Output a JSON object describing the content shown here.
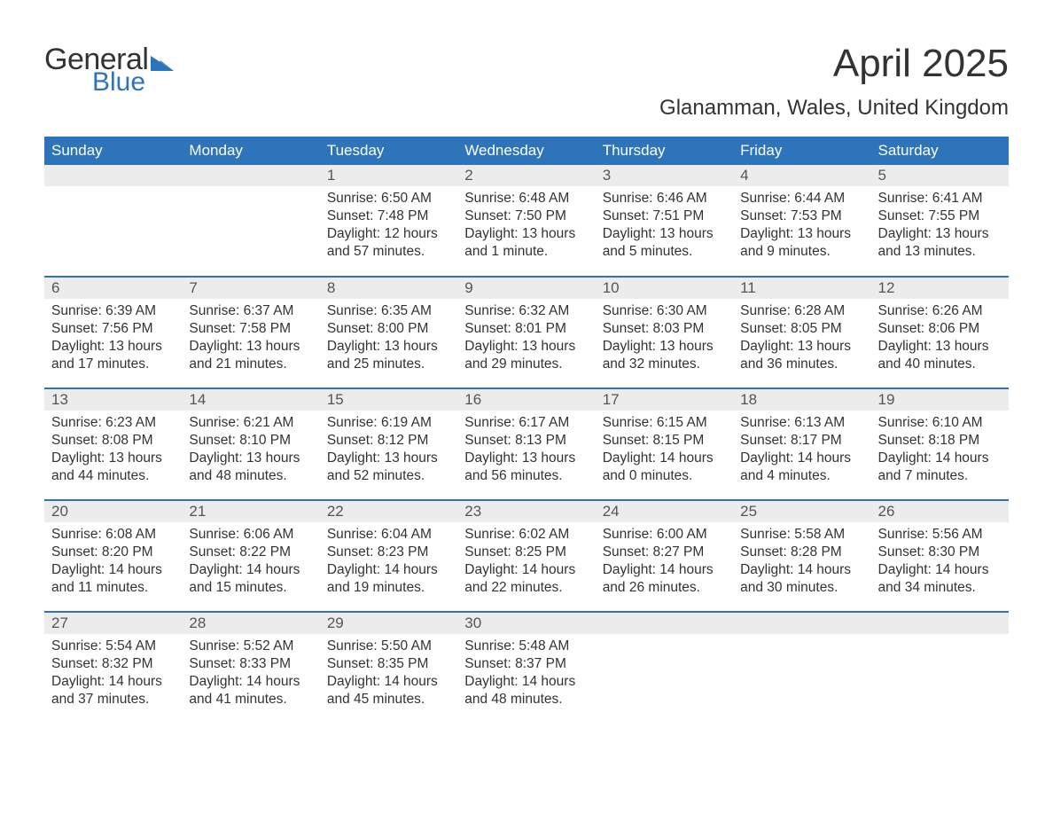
{
  "logo": {
    "word1": "General",
    "word2": "Blue",
    "tri_color": "#2d74bb"
  },
  "title": "April 2025",
  "location": "Glanamman, Wales, United Kingdom",
  "colors": {
    "header_bg": "#2d74bb",
    "header_text": "#ffffff",
    "daynum_bg": "#ececec",
    "daynum_text": "#555555",
    "body_text": "#333333",
    "row_divider": "#2d74bb",
    "page_bg": "#ffffff"
  },
  "fonts": {
    "title_size_pt": 33,
    "location_size_pt": 18,
    "header_size_pt": 13,
    "cell_size_pt": 12
  },
  "day_headers": [
    "Sunday",
    "Monday",
    "Tuesday",
    "Wednesday",
    "Thursday",
    "Friday",
    "Saturday"
  ],
  "weeks": [
    [
      {
        "blank": true
      },
      {
        "blank": true
      },
      {
        "n": "1",
        "sunrise": "Sunrise: 6:50 AM",
        "sunset": "Sunset: 7:48 PM",
        "dl1": "Daylight: 12 hours",
        "dl2": "and 57 minutes."
      },
      {
        "n": "2",
        "sunrise": "Sunrise: 6:48 AM",
        "sunset": "Sunset: 7:50 PM",
        "dl1": "Daylight: 13 hours",
        "dl2": "and 1 minute."
      },
      {
        "n": "3",
        "sunrise": "Sunrise: 6:46 AM",
        "sunset": "Sunset: 7:51 PM",
        "dl1": "Daylight: 13 hours",
        "dl2": "and 5 minutes."
      },
      {
        "n": "4",
        "sunrise": "Sunrise: 6:44 AM",
        "sunset": "Sunset: 7:53 PM",
        "dl1": "Daylight: 13 hours",
        "dl2": "and 9 minutes."
      },
      {
        "n": "5",
        "sunrise": "Sunrise: 6:41 AM",
        "sunset": "Sunset: 7:55 PM",
        "dl1": "Daylight: 13 hours",
        "dl2": "and 13 minutes."
      }
    ],
    [
      {
        "n": "6",
        "sunrise": "Sunrise: 6:39 AM",
        "sunset": "Sunset: 7:56 PM",
        "dl1": "Daylight: 13 hours",
        "dl2": "and 17 minutes."
      },
      {
        "n": "7",
        "sunrise": "Sunrise: 6:37 AM",
        "sunset": "Sunset: 7:58 PM",
        "dl1": "Daylight: 13 hours",
        "dl2": "and 21 minutes."
      },
      {
        "n": "8",
        "sunrise": "Sunrise: 6:35 AM",
        "sunset": "Sunset: 8:00 PM",
        "dl1": "Daylight: 13 hours",
        "dl2": "and 25 minutes."
      },
      {
        "n": "9",
        "sunrise": "Sunrise: 6:32 AM",
        "sunset": "Sunset: 8:01 PM",
        "dl1": "Daylight: 13 hours",
        "dl2": "and 29 minutes."
      },
      {
        "n": "10",
        "sunrise": "Sunrise: 6:30 AM",
        "sunset": "Sunset: 8:03 PM",
        "dl1": "Daylight: 13 hours",
        "dl2": "and 32 minutes."
      },
      {
        "n": "11",
        "sunrise": "Sunrise: 6:28 AM",
        "sunset": "Sunset: 8:05 PM",
        "dl1": "Daylight: 13 hours",
        "dl2": "and 36 minutes."
      },
      {
        "n": "12",
        "sunrise": "Sunrise: 6:26 AM",
        "sunset": "Sunset: 8:06 PM",
        "dl1": "Daylight: 13 hours",
        "dl2": "and 40 minutes."
      }
    ],
    [
      {
        "n": "13",
        "sunrise": "Sunrise: 6:23 AM",
        "sunset": "Sunset: 8:08 PM",
        "dl1": "Daylight: 13 hours",
        "dl2": "and 44 minutes."
      },
      {
        "n": "14",
        "sunrise": "Sunrise: 6:21 AM",
        "sunset": "Sunset: 8:10 PM",
        "dl1": "Daylight: 13 hours",
        "dl2": "and 48 minutes."
      },
      {
        "n": "15",
        "sunrise": "Sunrise: 6:19 AM",
        "sunset": "Sunset: 8:12 PM",
        "dl1": "Daylight: 13 hours",
        "dl2": "and 52 minutes."
      },
      {
        "n": "16",
        "sunrise": "Sunrise: 6:17 AM",
        "sunset": "Sunset: 8:13 PM",
        "dl1": "Daylight: 13 hours",
        "dl2": "and 56 minutes."
      },
      {
        "n": "17",
        "sunrise": "Sunrise: 6:15 AM",
        "sunset": "Sunset: 8:15 PM",
        "dl1": "Daylight: 14 hours",
        "dl2": "and 0 minutes."
      },
      {
        "n": "18",
        "sunrise": "Sunrise: 6:13 AM",
        "sunset": "Sunset: 8:17 PM",
        "dl1": "Daylight: 14 hours",
        "dl2": "and 4 minutes."
      },
      {
        "n": "19",
        "sunrise": "Sunrise: 6:10 AM",
        "sunset": "Sunset: 8:18 PM",
        "dl1": "Daylight: 14 hours",
        "dl2": "and 7 minutes."
      }
    ],
    [
      {
        "n": "20",
        "sunrise": "Sunrise: 6:08 AM",
        "sunset": "Sunset: 8:20 PM",
        "dl1": "Daylight: 14 hours",
        "dl2": "and 11 minutes."
      },
      {
        "n": "21",
        "sunrise": "Sunrise: 6:06 AM",
        "sunset": "Sunset: 8:22 PM",
        "dl1": "Daylight: 14 hours",
        "dl2": "and 15 minutes."
      },
      {
        "n": "22",
        "sunrise": "Sunrise: 6:04 AM",
        "sunset": "Sunset: 8:23 PM",
        "dl1": "Daylight: 14 hours",
        "dl2": "and 19 minutes."
      },
      {
        "n": "23",
        "sunrise": "Sunrise: 6:02 AM",
        "sunset": "Sunset: 8:25 PM",
        "dl1": "Daylight: 14 hours",
        "dl2": "and 22 minutes."
      },
      {
        "n": "24",
        "sunrise": "Sunrise: 6:00 AM",
        "sunset": "Sunset: 8:27 PM",
        "dl1": "Daylight: 14 hours",
        "dl2": "and 26 minutes."
      },
      {
        "n": "25",
        "sunrise": "Sunrise: 5:58 AM",
        "sunset": "Sunset: 8:28 PM",
        "dl1": "Daylight: 14 hours",
        "dl2": "and 30 minutes."
      },
      {
        "n": "26",
        "sunrise": "Sunrise: 5:56 AM",
        "sunset": "Sunset: 8:30 PM",
        "dl1": "Daylight: 14 hours",
        "dl2": "and 34 minutes."
      }
    ],
    [
      {
        "n": "27",
        "sunrise": "Sunrise: 5:54 AM",
        "sunset": "Sunset: 8:32 PM",
        "dl1": "Daylight: 14 hours",
        "dl2": "and 37 minutes."
      },
      {
        "n": "28",
        "sunrise": "Sunrise: 5:52 AM",
        "sunset": "Sunset: 8:33 PM",
        "dl1": "Daylight: 14 hours",
        "dl2": "and 41 minutes."
      },
      {
        "n": "29",
        "sunrise": "Sunrise: 5:50 AM",
        "sunset": "Sunset: 8:35 PM",
        "dl1": "Daylight: 14 hours",
        "dl2": "and 45 minutes."
      },
      {
        "n": "30",
        "sunrise": "Sunrise: 5:48 AM",
        "sunset": "Sunset: 8:37 PM",
        "dl1": "Daylight: 14 hours",
        "dl2": "and 48 minutes."
      },
      {
        "blank": true
      },
      {
        "blank": true
      },
      {
        "blank": true
      }
    ]
  ]
}
